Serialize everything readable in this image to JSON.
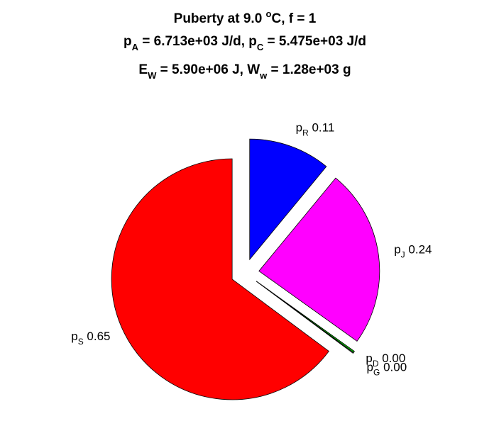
{
  "chart_data": {
    "type": "pie",
    "title": {
      "line1": {
        "text": "Puberty at 9.0 ",
        "sup": "o",
        "tail": "C, f = 1"
      },
      "line2": {
        "a_sym": "p",
        "a_sub": "A",
        "a_val": " = 6.713e+03 J/d,  ",
        "c_sym": "p",
        "c_sub": "C",
        "c_val": " = 5.475e+03 J/d"
      },
      "line3": {
        "e_sym": "E",
        "e_sub": "W",
        "e_val": " = 5.90e+06 J, ",
        "w_sym": "W",
        "w_sub": "w",
        "w_val": " = 1.28e+03 g"
      }
    },
    "slices": [
      {
        "sym": "p",
        "sub": "R",
        "label": "0.11",
        "value": 0.11,
        "color": "#0000ff"
      },
      {
        "sym": "p",
        "sub": "J",
        "label": "0.24",
        "value": 0.24,
        "color": "#ff00ff"
      },
      {
        "sym": "p",
        "sub": "G",
        "label": "0.00",
        "value": 0.002,
        "color": "#00cc00"
      },
      {
        "sym": "p",
        "sub": "D",
        "label": "0.00",
        "value": 0.001,
        "color": "#ffffff"
      },
      {
        "sym": "p",
        "sub": "S",
        "label": "0.65",
        "value": 0.65,
        "color": "#ff0000"
      }
    ]
  }
}
